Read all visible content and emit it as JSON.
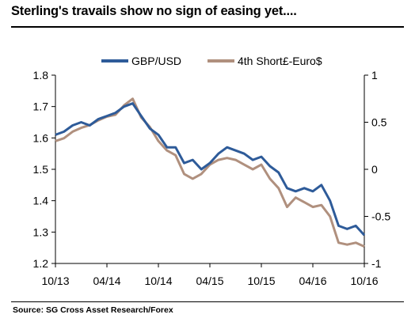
{
  "title": "Sterling's travails show no sign of easing yet....",
  "source": "Source: SG Cross Asset Research/Forex",
  "chart_data": {
    "type": "line",
    "title": "Sterling's travails show no sign of easing yet....",
    "legend_position": "top",
    "grid": false,
    "x_tick_labels": [
      "10/13",
      "04/14",
      "10/14",
      "04/15",
      "10/15",
      "04/16",
      "10/16"
    ],
    "x_range": [
      "2013-10",
      "2016-10"
    ],
    "left_axis": {
      "ticks": [
        "1.2",
        "1.3",
        "1.4",
        "1.5",
        "1.6",
        "1.7",
        "1.8"
      ],
      "ylim": [
        1.2,
        1.8
      ]
    },
    "right_axis": {
      "ticks": [
        "-1",
        "-0.5",
        "0",
        "0.5",
        "1"
      ],
      "ylim": [
        -1,
        1
      ]
    },
    "series": [
      {
        "name": "GBP/USD",
        "axis": "left",
        "color": "#2e5b99",
        "x": [
          "2013-10",
          "2013-11",
          "2013-12",
          "2014-01",
          "2014-02",
          "2014-03",
          "2014-04",
          "2014-05",
          "2014-06",
          "2014-07",
          "2014-08",
          "2014-09",
          "2014-10",
          "2014-11",
          "2014-12",
          "2015-01",
          "2015-02",
          "2015-03",
          "2015-04",
          "2015-05",
          "2015-06",
          "2015-07",
          "2015-08",
          "2015-09",
          "2015-10",
          "2015-11",
          "2015-12",
          "2016-01",
          "2016-02",
          "2016-03",
          "2016-04",
          "2016-05",
          "2016-06",
          "2016-07",
          "2016-08",
          "2016-09",
          "2016-10"
        ],
        "values": [
          1.61,
          1.62,
          1.64,
          1.65,
          1.64,
          1.66,
          1.67,
          1.68,
          1.7,
          1.71,
          1.67,
          1.63,
          1.61,
          1.57,
          1.57,
          1.52,
          1.53,
          1.5,
          1.52,
          1.55,
          1.57,
          1.56,
          1.55,
          1.53,
          1.54,
          1.51,
          1.49,
          1.44,
          1.43,
          1.44,
          1.43,
          1.45,
          1.4,
          1.32,
          1.31,
          1.32,
          1.29
        ]
      },
      {
        "name": "4th Short£-Euro$",
        "axis": "right",
        "color": "#b0907e",
        "x": [
          "2013-10",
          "2013-11",
          "2013-12",
          "2014-01",
          "2014-02",
          "2014-03",
          "2014-04",
          "2014-05",
          "2014-06",
          "2014-07",
          "2014-08",
          "2014-09",
          "2014-10",
          "2014-11",
          "2014-12",
          "2015-01",
          "2015-02",
          "2015-03",
          "2015-04",
          "2015-05",
          "2015-06",
          "2015-07",
          "2015-08",
          "2015-09",
          "2015-10",
          "2015-11",
          "2015-12",
          "2016-01",
          "2016-02",
          "2016-03",
          "2016-04",
          "2016-05",
          "2016-06",
          "2016-07",
          "2016-08",
          "2016-09",
          "2016-10"
        ],
        "values": [
          0.3,
          0.33,
          0.4,
          0.44,
          0.47,
          0.52,
          0.56,
          0.58,
          0.68,
          0.75,
          0.55,
          0.45,
          0.3,
          0.2,
          0.15,
          -0.05,
          -0.1,
          -0.05,
          0.05,
          0.1,
          0.12,
          0.1,
          0.05,
          0.0,
          0.05,
          -0.1,
          -0.2,
          -0.4,
          -0.3,
          -0.35,
          -0.4,
          -0.38,
          -0.5,
          -0.78,
          -0.8,
          -0.78,
          -0.82
        ]
      }
    ]
  }
}
